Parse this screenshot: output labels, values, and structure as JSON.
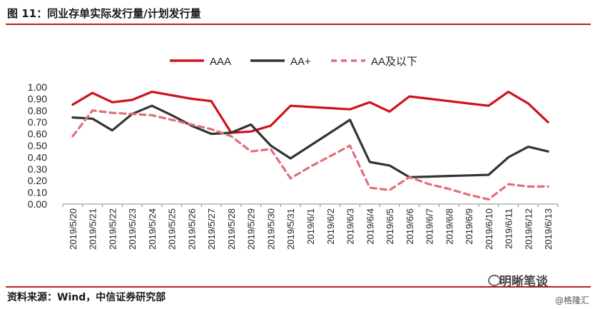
{
  "title": "图 11：同业存单实际发行量/计划发行量",
  "source": "资料来源：Wind，中信证券研究部",
  "watermark": "明晰笔谈",
  "watermark_sub": "@格隆汇",
  "chart_data": {
    "type": "line",
    "categories": [
      "2019/5/20",
      "2019/5/21",
      "2019/5/22",
      "2019/5/23",
      "2019/5/24",
      "2019/5/25",
      "2019/5/26",
      "2019/5/27",
      "2019/5/28",
      "2019/5/29",
      "2019/5/30",
      "2019/5/31",
      "2019/6/1",
      "2019/6/2",
      "2019/6/3",
      "2019/6/4",
      "2019/6/5",
      "2019/6/6",
      "2019/6/7",
      "2019/6/8",
      "2019/6/9",
      "2019/6/10",
      "2019/6/11",
      "2019/6/12",
      "2019/6/13"
    ],
    "ylim": [
      0,
      1.0
    ],
    "yticks": [
      "0.00",
      "0.10",
      "0.20",
      "0.30",
      "0.40",
      "0.50",
      "0.60",
      "0.70",
      "0.80",
      "0.90",
      "1.00"
    ],
    "legend_position": "top",
    "series": [
      {
        "name": "AAA",
        "color": "#d0101e",
        "dash": false,
        "values": [
          0.85,
          0.95,
          0.87,
          0.89,
          0.96,
          0.93,
          0.9,
          0.88,
          0.61,
          0.62,
          0.67,
          0.84,
          0.83,
          0.82,
          0.81,
          0.87,
          0.79,
          0.92,
          0.9,
          0.88,
          0.86,
          0.84,
          0.96,
          0.86,
          0.7
        ]
      },
      {
        "name": "AA+",
        "color": "#333333",
        "dash": false,
        "values": [
          0.74,
          0.73,
          0.63,
          0.77,
          0.84,
          0.76,
          0.67,
          0.6,
          0.61,
          0.68,
          0.5,
          0.39,
          0.5,
          0.61,
          0.72,
          0.36,
          0.33,
          0.23,
          0.235,
          0.24,
          0.245,
          0.25,
          0.4,
          0.49,
          0.45
        ]
      },
      {
        "name": "AA及以下",
        "color": "#e06d7a",
        "dash": true,
        "values": [
          0.58,
          0.8,
          0.78,
          0.77,
          0.76,
          0.72,
          0.68,
          0.64,
          0.58,
          0.45,
          0.47,
          0.22,
          0.32,
          0.41,
          0.5,
          0.14,
          0.12,
          0.23,
          0.17,
          0.13,
          0.08,
          0.04,
          0.17,
          0.15,
          0.15
        ]
      }
    ]
  }
}
